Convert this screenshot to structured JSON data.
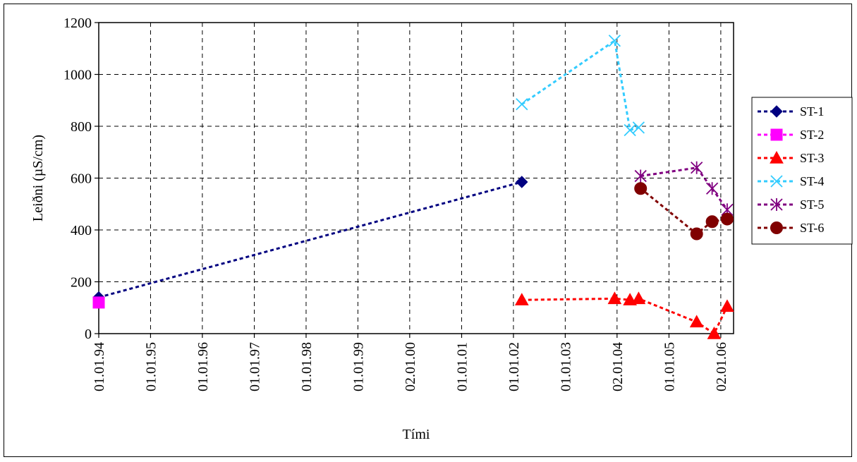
{
  "chart_data": {
    "type": "line",
    "xlabel": "Tími",
    "ylabel": "Leiðni (µS/cm)",
    "x_axis_type": "date",
    "xlim": [
      "1994-01-01",
      "2006-04-01"
    ],
    "ylim": [
      0,
      1200
    ],
    "y_ticks": [
      0,
      200,
      400,
      600,
      800,
      1000,
      1200
    ],
    "x_ticks": [
      {
        "date": "1994-01-01",
        "label": "01.01.94"
      },
      {
        "date": "1995-01-01",
        "label": "01.01.95"
      },
      {
        "date": "1996-01-01",
        "label": "01.01.96"
      },
      {
        "date": "1997-01-01",
        "label": "01.01.97"
      },
      {
        "date": "1998-01-01",
        "label": "01.01.98"
      },
      {
        "date": "1999-01-01",
        "label": "01.01.99"
      },
      {
        "date": "2000-01-01",
        "label": "02.01.00"
      },
      {
        "date": "2001-01-01",
        "label": "01.01.01"
      },
      {
        "date": "2002-01-01",
        "label": "01.01.02"
      },
      {
        "date": "2003-01-01",
        "label": "01.01.03"
      },
      {
        "date": "2004-01-01",
        "label": "02.01.04"
      },
      {
        "date": "2005-01-01",
        "label": "01.01.05"
      },
      {
        "date": "2006-01-01",
        "label": "02.01.06"
      }
    ],
    "grid": true,
    "legend_position": "right",
    "series": [
      {
        "name": "ST-1",
        "color": "#000080",
        "marker": "diamond",
        "points": [
          {
            "x": "1994-01-01",
            "y": 140
          },
          {
            "x": "2002-03-01",
            "y": 585
          }
        ]
      },
      {
        "name": "ST-2",
        "color": "#FF00FF",
        "marker": "square",
        "points": [
          {
            "x": "1994-01-01",
            "y": 120
          }
        ]
      },
      {
        "name": "ST-3",
        "color": "#FF0000",
        "marker": "triangle",
        "points": [
          {
            "x": "2002-03-01",
            "y": 130
          },
          {
            "x": "2003-12-15",
            "y": 135
          },
          {
            "x": "2004-04-01",
            "y": 130
          },
          {
            "x": "2004-06-01",
            "y": 135
          },
          {
            "x": "2005-07-15",
            "y": 45
          },
          {
            "x": "2005-11-15",
            "y": 0
          },
          {
            "x": "2006-02-15",
            "y": 105
          }
        ]
      },
      {
        "name": "ST-4",
        "color": "#33CCFF",
        "marker": "x",
        "points": [
          {
            "x": "2002-03-01",
            "y": 885
          },
          {
            "x": "2003-12-15",
            "y": 1130
          },
          {
            "x": "2004-04-01",
            "y": 785
          },
          {
            "x": "2004-06-01",
            "y": 795
          }
        ]
      },
      {
        "name": "ST-5",
        "color": "#800080",
        "marker": "star",
        "points": [
          {
            "x": "2004-06-15",
            "y": 608
          },
          {
            "x": "2005-07-15",
            "y": 640
          },
          {
            "x": "2005-11-01",
            "y": 560
          },
          {
            "x": "2006-02-15",
            "y": 478
          }
        ]
      },
      {
        "name": "ST-6",
        "color": "#800000",
        "marker": "circle",
        "points": [
          {
            "x": "2004-06-15",
            "y": 560
          },
          {
            "x": "2005-07-15",
            "y": 385
          },
          {
            "x": "2005-11-01",
            "y": 432
          },
          {
            "x": "2006-02-15",
            "y": 442
          }
        ]
      }
    ]
  }
}
